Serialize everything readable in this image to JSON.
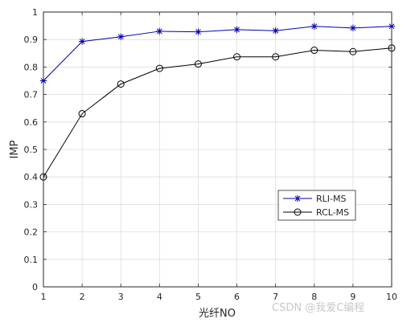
{
  "chart_data": {
    "type": "line",
    "x": [
      1,
      2,
      3,
      4,
      5,
      6,
      7,
      8,
      9,
      10
    ],
    "series": [
      {
        "name": "RLI-MS",
        "color": "#0000b4",
        "marker": "asterisk",
        "values": [
          0.75,
          0.893,
          0.91,
          0.93,
          0.928,
          0.936,
          0.932,
          0.948,
          0.942,
          0.948
        ]
      },
      {
        "name": "RCL-MS",
        "color": "#000000",
        "marker": "circle",
        "values": [
          0.4,
          0.63,
          0.738,
          0.795,
          0.811,
          0.837,
          0.837,
          0.861,
          0.856,
          0.869
        ]
      }
    ],
    "xlabel": "光纤NO",
    "ylabel": "IMP",
    "xlim": [
      1,
      10
    ],
    "ylim": [
      0,
      1
    ],
    "xticks": [
      "1",
      "2",
      "3",
      "4",
      "5",
      "6",
      "7",
      "8",
      "9",
      "10"
    ],
    "yticks": [
      "0",
      "0.1",
      "0.2",
      "0.3",
      "0.4",
      "0.5",
      "0.6",
      "0.7",
      "0.8",
      "0.9",
      "1"
    ],
    "grid": true,
    "legend_position": "lower-right-inside"
  },
  "watermark": "CSDN @我爱C编程"
}
